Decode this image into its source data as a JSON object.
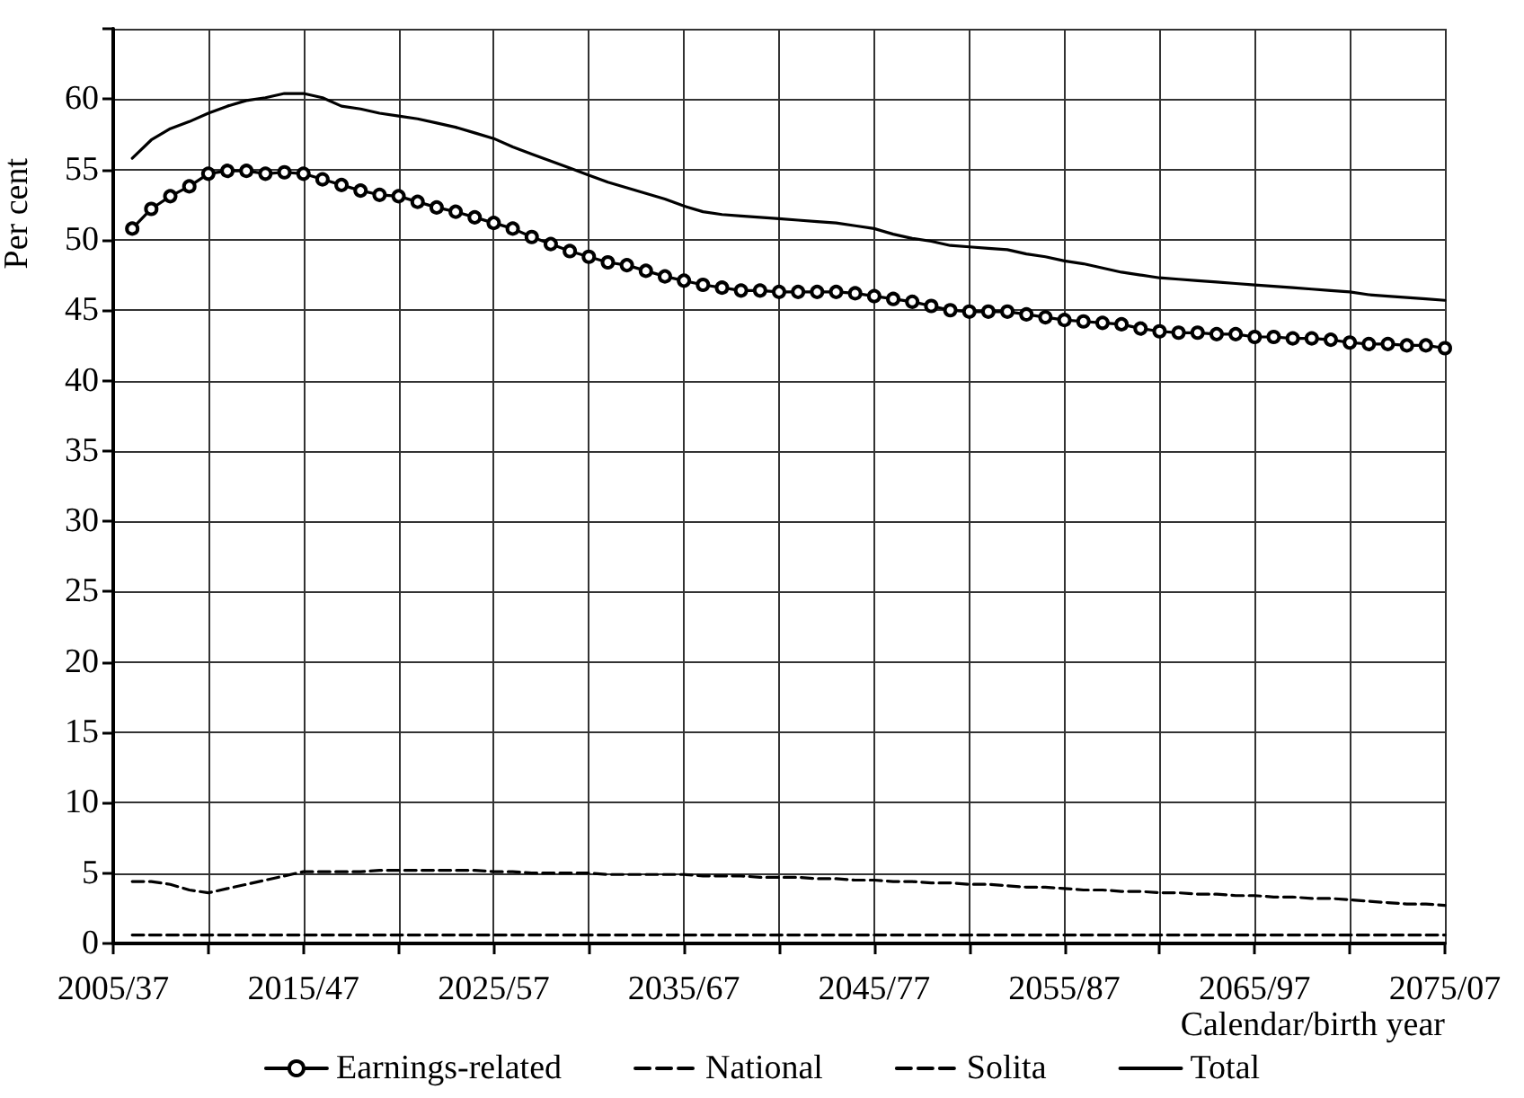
{
  "chart_data": {
    "type": "line",
    "xlabel": "Calendar/birth year",
    "ylabel": "Per cent",
    "categories": [
      "2005/37",
      null,
      null,
      null,
      null,
      null,
      null,
      null,
      null,
      null,
      "2015/47",
      null,
      null,
      null,
      null,
      null,
      null,
      null,
      null,
      null,
      "2025/57",
      null,
      null,
      null,
      null,
      null,
      null,
      null,
      null,
      null,
      "2035/67",
      null,
      null,
      null,
      null,
      null,
      null,
      null,
      null,
      null,
      "2045/77",
      null,
      null,
      null,
      null,
      null,
      null,
      null,
      null,
      null,
      "2055/87",
      null,
      null,
      null,
      null,
      null,
      null,
      null,
      null,
      null,
      "2065/97",
      null,
      null,
      null,
      null,
      null,
      null,
      null,
      null,
      null,
      "2075/07"
    ],
    "series": [
      {
        "name": "Earnings-related",
        "color": "#000000",
        "marker": "circle",
        "line_style": "solid",
        "values": [
          null,
          50.8,
          52.2,
          53.1,
          53.8,
          54.7,
          54.9,
          54.9,
          54.7,
          54.8,
          54.7,
          54.3,
          53.9,
          53.5,
          53.2,
          53.1,
          52.7,
          52.3,
          52.0,
          51.6,
          51.2,
          50.8,
          50.2,
          49.7,
          49.2,
          48.8,
          48.4,
          48.2,
          47.8,
          47.4,
          47.1,
          46.8,
          46.6,
          46.4,
          46.4,
          46.3,
          46.3,
          46.3,
          46.3,
          46.2,
          46.0,
          45.8,
          45.6,
          45.3,
          45.0,
          44.9,
          44.9,
          44.9,
          44.7,
          44.5,
          44.3,
          44.2,
          44.1,
          44.0,
          43.7,
          43.5,
          43.4,
          43.4,
          43.3,
          43.3,
          43.1,
          43.1,
          43.0,
          43.0,
          42.9,
          42.7,
          42.6,
          42.6,
          42.5,
          42.5,
          42.3
        ]
      },
      {
        "name": "National",
        "color": "#000000",
        "marker": "none",
        "line_style": "dashed",
        "values": [
          null,
          4.4,
          4.4,
          4.2,
          3.8,
          3.6,
          3.9,
          4.2,
          4.5,
          4.8,
          5.1,
          5.1,
          5.1,
          5.1,
          5.2,
          5.2,
          5.2,
          5.2,
          5.2,
          5.2,
          5.1,
          5.1,
          5.0,
          5.0,
          5.0,
          5.0,
          4.9,
          4.9,
          4.9,
          4.9,
          4.9,
          4.8,
          4.8,
          4.8,
          4.7,
          4.7,
          4.7,
          4.6,
          4.6,
          4.5,
          4.5,
          4.4,
          4.4,
          4.3,
          4.3,
          4.2,
          4.2,
          4.1,
          4.0,
          4.0,
          3.9,
          3.8,
          3.8,
          3.7,
          3.7,
          3.6,
          3.6,
          3.5,
          3.5,
          3.4,
          3.4,
          3.3,
          3.3,
          3.2,
          3.2,
          3.1,
          3.0,
          2.9,
          2.8,
          2.8,
          2.7
        ]
      },
      {
        "name": "Solita",
        "color": "#000000",
        "marker": "none",
        "line_style": "dashed",
        "values": [
          null,
          0.6,
          0.6,
          0.6,
          0.6,
          0.6,
          0.6,
          0.6,
          0.6,
          0.6,
          0.6,
          0.6,
          0.6,
          0.6,
          0.6,
          0.6,
          0.6,
          0.6,
          0.6,
          0.6,
          0.6,
          0.6,
          0.6,
          0.6,
          0.6,
          0.6,
          0.6,
          0.6,
          0.6,
          0.6,
          0.6,
          0.6,
          0.6,
          0.6,
          0.6,
          0.6,
          0.6,
          0.6,
          0.6,
          0.6,
          0.6,
          0.6,
          0.6,
          0.6,
          0.6,
          0.6,
          0.6,
          0.6,
          0.6,
          0.6,
          0.6,
          0.6,
          0.6,
          0.6,
          0.6,
          0.6,
          0.6,
          0.6,
          0.6,
          0.6,
          0.6,
          0.6,
          0.6,
          0.6,
          0.6,
          0.6,
          0.6,
          0.6,
          0.6,
          0.6,
          0.6
        ]
      },
      {
        "name": "Total",
        "color": "#000000",
        "marker": "none",
        "line_style": "solid",
        "values": [
          null,
          55.8,
          57.1,
          57.9,
          58.4,
          59.0,
          59.5,
          59.9,
          60.1,
          60.4,
          60.4,
          60.1,
          59.5,
          59.3,
          59.0,
          58.8,
          58.6,
          58.3,
          58.0,
          57.6,
          57.2,
          56.6,
          56.1,
          55.6,
          55.1,
          54.6,
          54.1,
          53.7,
          53.3,
          52.9,
          52.4,
          52.0,
          51.8,
          51.7,
          51.6,
          51.5,
          51.4,
          51.3,
          51.2,
          51.0,
          50.8,
          50.4,
          50.1,
          49.9,
          49.6,
          49.5,
          49.4,
          49.3,
          49.0,
          48.8,
          48.5,
          48.3,
          48.0,
          47.7,
          47.5,
          47.3,
          47.2,
          47.1,
          47.0,
          46.9,
          46.8,
          46.7,
          46.6,
          46.5,
          46.4,
          46.3,
          46.1,
          46.0,
          45.9,
          45.8,
          45.7
        ]
      }
    ],
    "ylim": [
      0,
      65
    ],
    "yticks": [
      0,
      5,
      10,
      15,
      20,
      25,
      30,
      35,
      40,
      45,
      50,
      55,
      60,
      {
        "value": 65,
        "label": null
      }
    ],
    "grid": true,
    "legend": "bottom"
  }
}
